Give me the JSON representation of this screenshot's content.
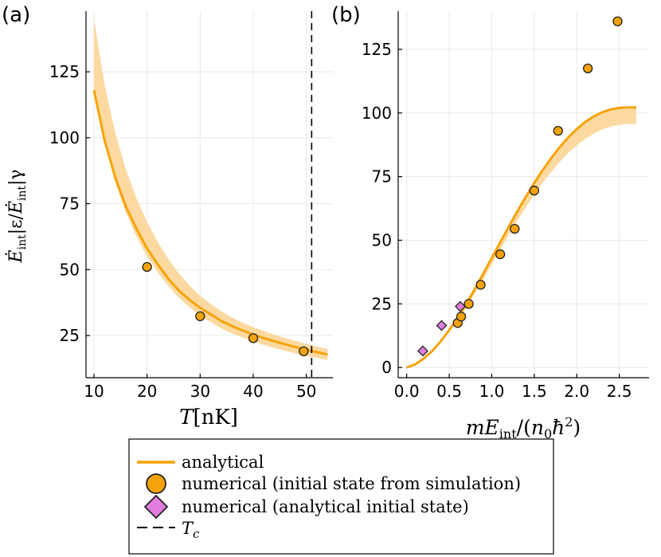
{
  "colors": {
    "analytical": "#f5a30a",
    "band": "#fbd9a0",
    "numerical_sim": "#f5a30a",
    "numerical_analytic": "#e27ee0",
    "marker_edge": "#222222",
    "tc_line": "#000000"
  },
  "chart_data": [
    {
      "panel_label": "(a)",
      "type": "line",
      "xlabel_var": "T",
      "xlabel_unit": "[nK]",
      "ylabel": "Ė_int|_ε / Ė_int|_γ",
      "xlim": [
        8.5,
        55
      ],
      "ylim": [
        9,
        148
      ],
      "xticks": [
        10,
        20,
        30,
        40,
        50
      ],
      "yticks": [
        25,
        50,
        75,
        100,
        125
      ],
      "grid": true,
      "tc": 51,
      "series": [
        {
          "name": "analytical",
          "x": [
            10,
            12,
            14,
            16,
            18,
            20,
            22,
            24,
            26,
            28,
            30,
            32,
            34,
            36,
            38,
            40,
            42,
            44,
            46,
            48,
            50,
            52,
            54
          ],
          "y": [
            118,
            99,
            85,
            74,
            65.5,
            58,
            52,
            46.5,
            42,
            38.5,
            35.5,
            33,
            30.5,
            28.6,
            26.9,
            25.4,
            24,
            22.8,
            21.7,
            20.6,
            19.6,
            18.7,
            17.8
          ],
          "band_upper": [
            145,
            120,
            102,
            88,
            77,
            68,
            60.5,
            54,
            48.5,
            44,
            40,
            37,
            34.2,
            31.8,
            29.8,
            28.2,
            26.7,
            25.3,
            24,
            22.9,
            21.8,
            20.8,
            19.9
          ],
          "band_lower": [
            118,
            98,
            83,
            71.5,
            62.5,
            55,
            49,
            43.8,
            39.3,
            35.7,
            32.6,
            30,
            27.7,
            25.8,
            24.2,
            22.7,
            21.4,
            20.2,
            19.2,
            18.2,
            17.3,
            16.5,
            15.7
          ]
        },
        {
          "name": "numerical (initial state from simulation)",
          "marker": "circle",
          "x": [
            20,
            30,
            40,
            49.5
          ],
          "y": [
            51,
            32.3,
            24,
            19
          ]
        }
      ]
    },
    {
      "panel_label": "(b)",
      "type": "line",
      "xlabel": "mE_int/(n_0ħ^2)",
      "xlim": [
        -0.1,
        2.85
      ],
      "ylim": [
        -4,
        140
      ],
      "xticks": [
        0.0,
        0.5,
        1.0,
        1.5,
        2.0,
        2.5
      ],
      "xtick_labels": [
        "0.0",
        "0.5",
        "1.0",
        "1.5",
        "2.0",
        "2.5"
      ],
      "yticks": [
        0,
        25,
        50,
        75,
        100,
        125
      ],
      "grid": true,
      "series": [
        {
          "name": "analytical",
          "x": [
            0,
            0.1,
            0.2,
            0.3,
            0.4,
            0.5,
            0.6,
            0.7,
            0.8,
            0.9,
            1.0,
            1.1,
            1.2,
            1.3,
            1.4,
            1.5,
            1.6,
            1.7,
            1.8,
            1.9,
            2.0,
            2.1,
            2.2,
            2.3,
            2.4,
            2.5,
            2.6,
            2.7
          ],
          "y": [
            0,
            1.2,
            3.5,
            6.5,
            10.3,
            14.7,
            19.6,
            25,
            30.8,
            36.8,
            43,
            49.2,
            55.3,
            61.3,
            67,
            72.5,
            77.6,
            82.3,
            86.6,
            90.4,
            93.7,
            96.5,
            98.7,
            100.3,
            101.4,
            102,
            102.2,
            102.2
          ],
          "band_upper": [
            0,
            1.2,
            3.5,
            6.5,
            10.3,
            14.7,
            19.6,
            25,
            30.8,
            36.8,
            43,
            49.2,
            55.3,
            61.3,
            67,
            72.5,
            77.6,
            82.3,
            86.6,
            90.4,
            93.7,
            96.5,
            98.7,
            100.3,
            101.4,
            102,
            102.2,
            102.2
          ],
          "band_lower": [
            0,
            1.1,
            3.2,
            6,
            9.6,
            13.8,
            18.4,
            23.5,
            29,
            34.6,
            40.5,
            46.3,
            52,
            57.6,
            62.9,
            67.9,
            72.6,
            76.9,
            80.8,
            84.3,
            87.3,
            89.8,
            91.9,
            93.5,
            94.7,
            95.4,
            95.7,
            95.7
          ]
        },
        {
          "name": "numerical (initial state from simulation)",
          "marker": "circle",
          "x": [
            0.6,
            0.64,
            0.73,
            0.87,
            1.1,
            1.27,
            1.5,
            1.78,
            2.13,
            2.48
          ],
          "y": [
            17.5,
            20,
            25,
            32.5,
            44.5,
            54.5,
            69.5,
            93,
            117.5,
            136
          ]
        },
        {
          "name": "numerical (analytical initial state)",
          "marker": "diamond",
          "x": [
            0.19,
            0.41,
            0.63
          ],
          "y": [
            6.5,
            16.5,
            24
          ]
        }
      ]
    }
  ],
  "legend": {
    "placement": "bottom-center",
    "items": [
      {
        "label": "analytical",
        "kind": "line"
      },
      {
        "label": "numerical (initial state from simulation)",
        "kind": "circle"
      },
      {
        "label": "numerical (analytical initial state)",
        "kind": "diamond"
      },
      {
        "label": "T_c",
        "kind": "dashed"
      }
    ]
  },
  "texts": {
    "a_label": "(a)",
    "b_label": "(b)",
    "a_xlabel_var": "T",
    "a_xlabel_unit": "[nK]",
    "b_xlabel_m": "m",
    "b_xlabel_E": "E",
    "b_xlabel_int": "int",
    "b_xlabel_rest1": "/(",
    "b_xlabel_n": "n",
    "b_xlabel_0": "0",
    "b_xlabel_hbar": "ħ",
    "b_xlabel_2": "2",
    "b_xlabel_close": ")",
    "ylabel_E": "Ė",
    "ylabel_int": "int",
    "ylabel_bar_eps": "|ε",
    "ylabel_slash": "/",
    "ylabel_E2": "Ė",
    "ylabel_int2": "int",
    "ylabel_bar_gamma": "|γ",
    "legend_1": "analytical",
    "legend_2": "numerical (initial state from simulation)",
    "legend_3": "numerical (analytical initial state)",
    "legend_4_T": "T",
    "legend_4_c": "c"
  }
}
